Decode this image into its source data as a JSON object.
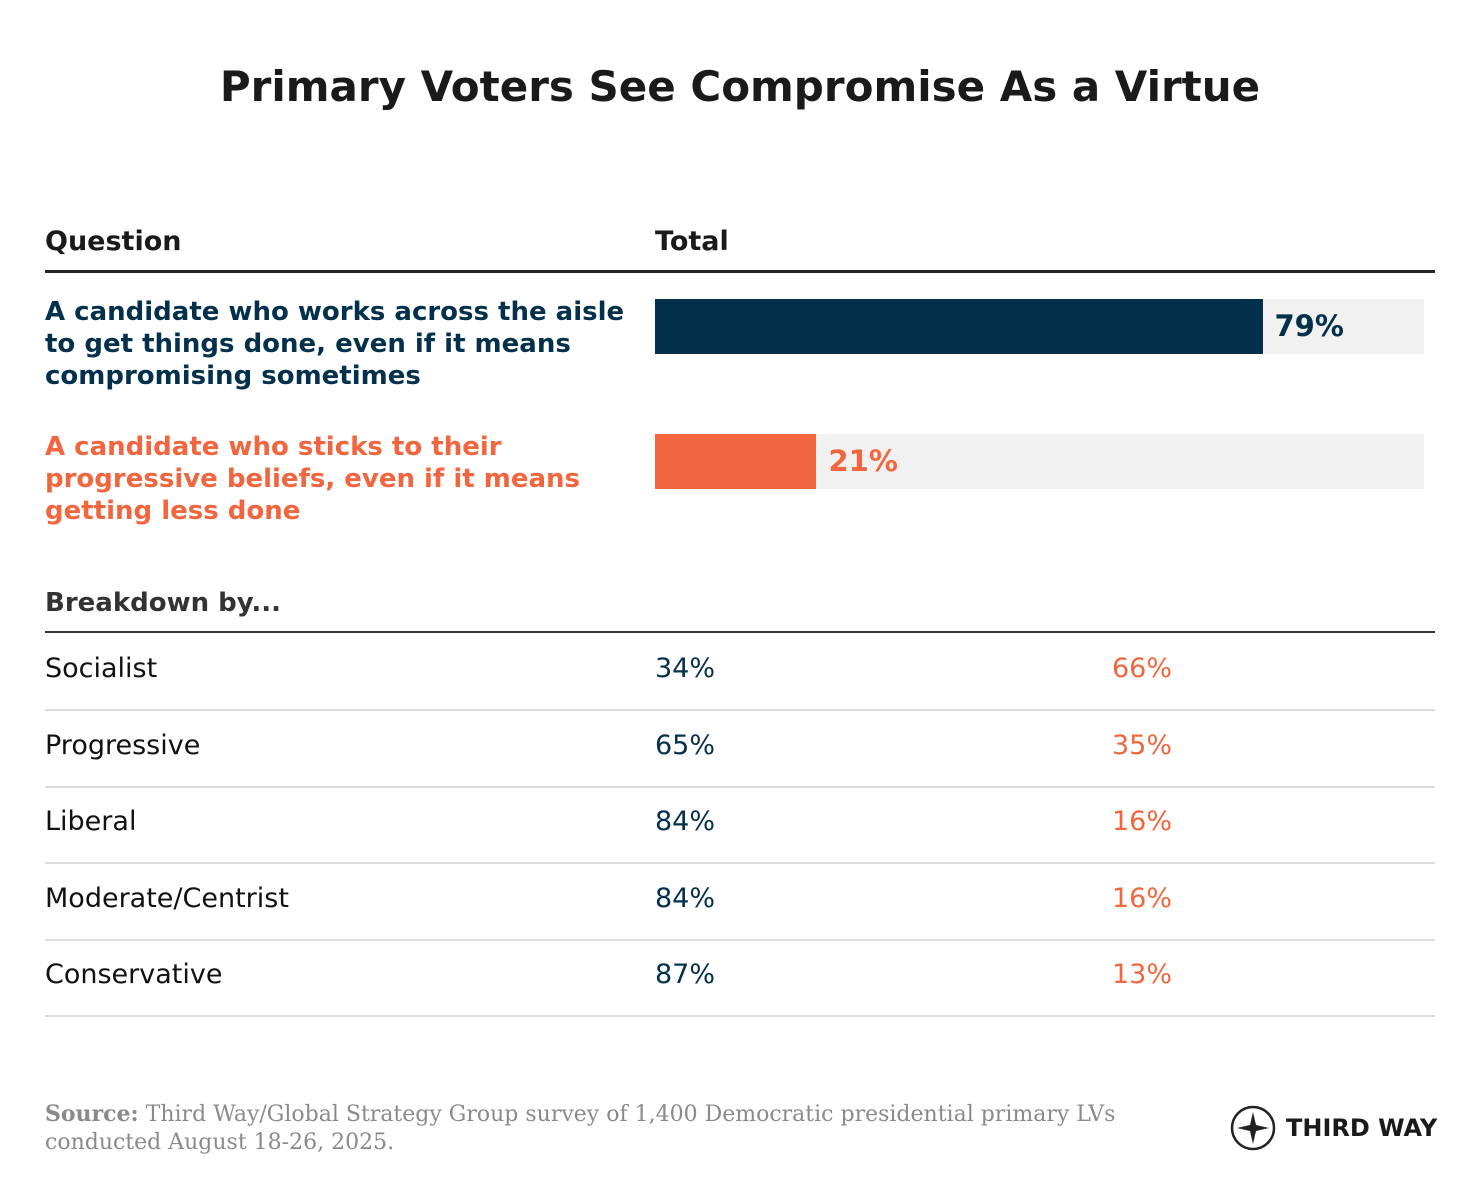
{
  "chart_data": {
    "type": "bar",
    "orientation": "horizontal",
    "title": "Primary Voters See Compromise As a Virtue",
    "category_header": "Question",
    "value_header": "Total",
    "categories": [
      "A candidate who works across the aisle to get things done, even if it means compromising sometimes",
      "A candidate who sticks to their progressive beliefs, even if it means getting less done"
    ],
    "values": [
      79,
      21
    ],
    "value_labels": [
      "79%",
      "21%"
    ],
    "colors": [
      "#03304b",
      "#f2663f"
    ],
    "track_color": "#f1f1f1",
    "xlim": [
      0,
      100
    ]
  },
  "breakdown": {
    "title": "Breakdown by...",
    "rows": [
      [
        "Socialist",
        "34%",
        "66%"
      ],
      [
        "Progressive",
        "65%",
        "35%"
      ],
      [
        "Liberal",
        "84%",
        "16%"
      ],
      [
        "Moderate/Centrist",
        "84%",
        "16%"
      ],
      [
        "Conservative",
        "87%",
        "13%"
      ]
    ]
  },
  "source": {
    "label": "Source:",
    "text": "Third Way/Global Strategy Group survey of 1,400 Democratic presidential primary LVs conducted August 18-26, 2025."
  },
  "logo": "THIRD WAY"
}
